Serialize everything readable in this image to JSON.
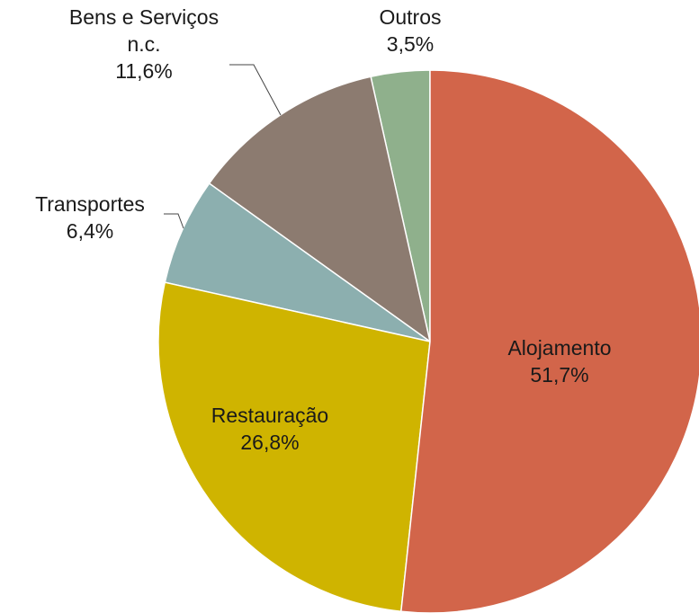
{
  "chart_data": {
    "type": "pie",
    "categories": [
      "Alojamento",
      "Restauração",
      "Transportes",
      "Bens e Serviços n.c.",
      "Outros"
    ],
    "values": [
      51.7,
      26.8,
      6.4,
      11.6,
      3.5
    ],
    "value_labels": [
      "51,7%",
      "26,8%",
      "6,4%",
      "11,6%",
      "3,5%"
    ],
    "colors": [
      "#d2654a",
      "#cfb400",
      "#8cafaf",
      "#8c7b70",
      "#8fb08c"
    ]
  }
}
